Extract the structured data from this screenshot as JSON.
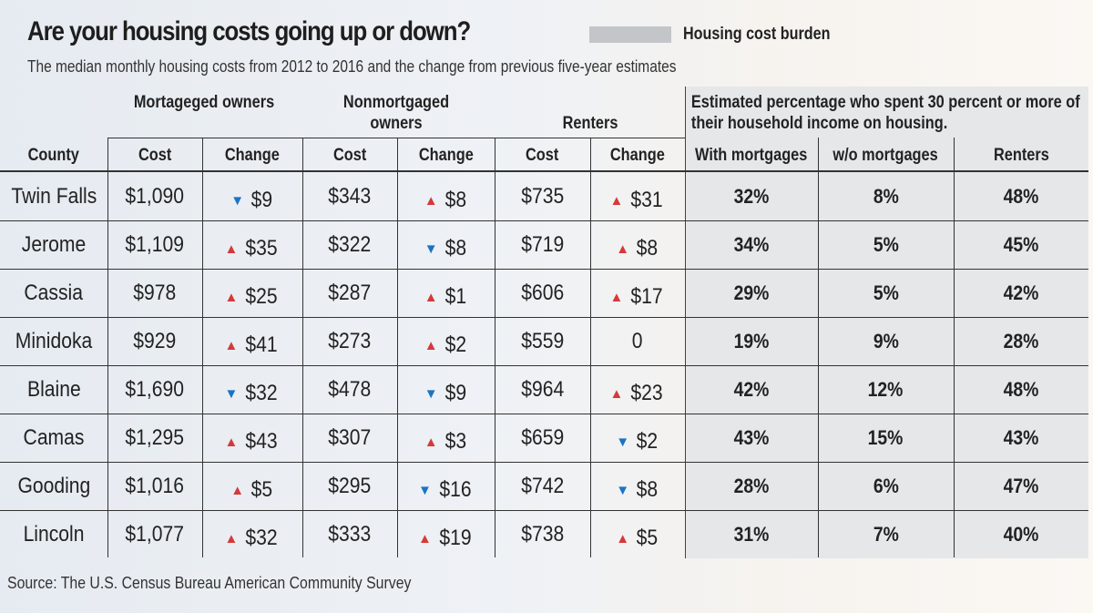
{
  "title": "Are your housing costs going up or down?",
  "legend": {
    "label": "Housing cost burden",
    "swatch_color": "#c3c5c8"
  },
  "subtitle": "The median monthly housing costs from 2012 to 2016 and the change from previous five-year estimates",
  "source": "Source: The U.S. Census Bureau  American Community Survey",
  "colors": {
    "up": "#d43a3a",
    "down": "#1a74c4"
  },
  "chart_data": {
    "type": "table",
    "group_headers": {
      "mortgaged": "Mortageged owners",
      "nonmortgaged": "Nonmortgaged owners",
      "renters": "Renters",
      "burden": "Estimated percentage who spent 30 percent or more of their household income on housing."
    },
    "columns": [
      "County",
      "Cost",
      "Change",
      "Cost",
      "Change",
      "Cost",
      "Change",
      "With mortgages",
      "w/o mortgages",
      "Renters"
    ],
    "rows": [
      {
        "county": "Twin Falls",
        "m_cost": "$1,090",
        "m_change": {
          "dir": "down",
          "value": "$9"
        },
        "n_cost": "$343",
        "n_change": {
          "dir": "up",
          "value": "$8"
        },
        "r_cost": "$735",
        "r_change": {
          "dir": "up",
          "value": "$31"
        },
        "pct_with": "32%",
        "pct_without": "8%",
        "pct_renters": "48%"
      },
      {
        "county": "Jerome",
        "m_cost": "$1,109",
        "m_change": {
          "dir": "up",
          "value": "$35"
        },
        "n_cost": "$322",
        "n_change": {
          "dir": "down",
          "value": "$8"
        },
        "r_cost": "$719",
        "r_change": {
          "dir": "up",
          "value": "$8"
        },
        "pct_with": "34%",
        "pct_without": "5%",
        "pct_renters": "45%"
      },
      {
        "county": "Cassia",
        "m_cost": "$978",
        "m_change": {
          "dir": "up",
          "value": "$25"
        },
        "n_cost": "$287",
        "n_change": {
          "dir": "up",
          "value": "$1"
        },
        "r_cost": "$606",
        "r_change": {
          "dir": "up",
          "value": "$17"
        },
        "pct_with": "29%",
        "pct_without": "5%",
        "pct_renters": "42%"
      },
      {
        "county": "Minidoka",
        "m_cost": "$929",
        "m_change": {
          "dir": "up",
          "value": "$41"
        },
        "n_cost": "$273",
        "n_change": {
          "dir": "up",
          "value": "$2"
        },
        "r_cost": "$559",
        "r_change": {
          "dir": "none",
          "value": "0"
        },
        "pct_with": "19%",
        "pct_without": "9%",
        "pct_renters": "28%"
      },
      {
        "county": "Blaine",
        "m_cost": "$1,690",
        "m_change": {
          "dir": "down",
          "value": "$32"
        },
        "n_cost": "$478",
        "n_change": {
          "dir": "down",
          "value": "$9"
        },
        "r_cost": "$964",
        "r_change": {
          "dir": "up",
          "value": "$23"
        },
        "pct_with": "42%",
        "pct_without": "12%",
        "pct_renters": "48%"
      },
      {
        "county": "Camas",
        "m_cost": "$1,295",
        "m_change": {
          "dir": "up",
          "value": "$43"
        },
        "n_cost": "$307",
        "n_change": {
          "dir": "up",
          "value": "$3"
        },
        "r_cost": "$659",
        "r_change": {
          "dir": "down",
          "value": "$2"
        },
        "pct_with": "43%",
        "pct_without": "15%",
        "pct_renters": "43%"
      },
      {
        "county": "Gooding",
        "m_cost": "$1,016",
        "m_change": {
          "dir": "up",
          "value": "$5"
        },
        "n_cost": "$295",
        "n_change": {
          "dir": "down",
          "value": "$16"
        },
        "r_cost": "$742",
        "r_change": {
          "dir": "down",
          "value": "$8"
        },
        "pct_with": "28%",
        "pct_without": "6%",
        "pct_renters": "47%"
      },
      {
        "county": "Lincoln",
        "m_cost": "$1,077",
        "m_change": {
          "dir": "up",
          "value": "$32"
        },
        "n_cost": "$333",
        "n_change": {
          "dir": "up",
          "value": "$19"
        },
        "r_cost": "$738",
        "r_change": {
          "dir": "up",
          "value": "$5"
        },
        "pct_with": "31%",
        "pct_without": "7%",
        "pct_renters": "40%"
      }
    ]
  }
}
